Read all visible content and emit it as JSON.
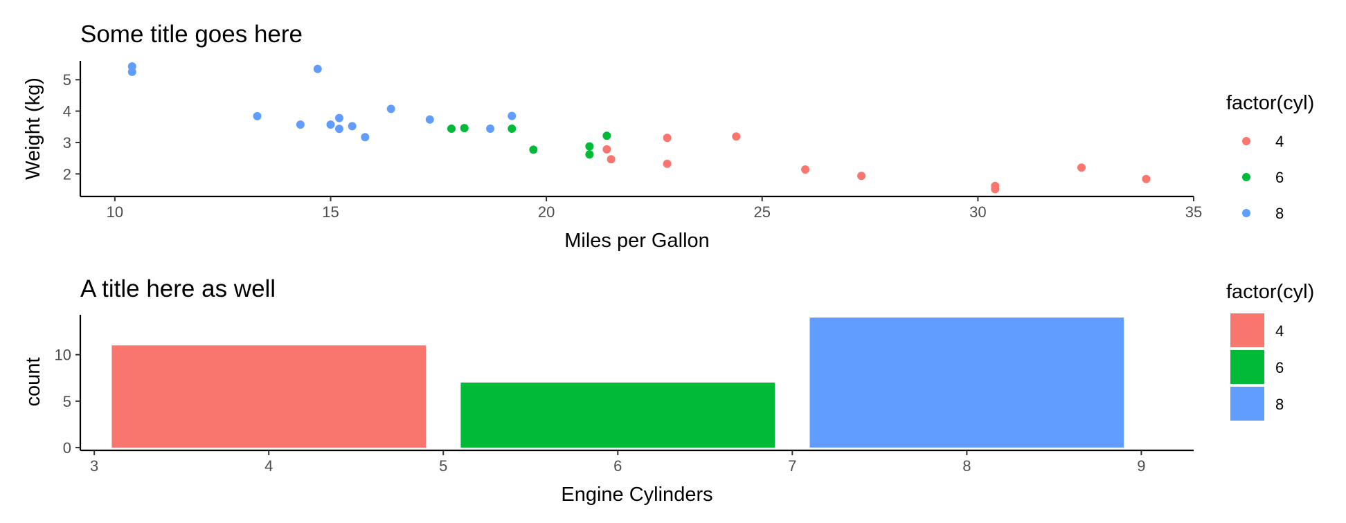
{
  "colors": {
    "4": "#F8766D",
    "6": "#00BA38",
    "8": "#619CFF"
  },
  "chart_data": [
    {
      "type": "scatter",
      "title": "Some title goes here",
      "xlabel": "Miles per Gallon",
      "ylabel": "Weight (kg)",
      "xlim": [
        9.2,
        35.0
      ],
      "ylim": [
        1.28,
        5.6
      ],
      "x_ticks": [
        10,
        15,
        20,
        25,
        30,
        35
      ],
      "y_ticks": [
        2,
        3,
        4,
        5
      ],
      "grid": false,
      "legend": {
        "title": "factor(cyl)",
        "position": "right",
        "entries": [
          "4",
          "6",
          "8"
        ]
      },
      "series": [
        {
          "name": "4",
          "points": [
            [
              22.8,
              2.32
            ],
            [
              24.4,
              3.19
            ],
            [
              22.8,
              3.15
            ],
            [
              32.4,
              2.2
            ],
            [
              30.4,
              1.615
            ],
            [
              33.9,
              1.835
            ],
            [
              21.5,
              2.465
            ],
            [
              27.3,
              1.935
            ],
            [
              26.0,
              2.14
            ],
            [
              30.4,
              1.513
            ],
            [
              21.4,
              2.78
            ]
          ]
        },
        {
          "name": "6",
          "points": [
            [
              21.0,
              2.62
            ],
            [
              21.0,
              2.875
            ],
            [
              21.4,
              3.215
            ],
            [
              18.1,
              3.46
            ],
            [
              19.2,
              3.44
            ],
            [
              17.8,
              3.44
            ],
            [
              19.7,
              2.77
            ]
          ]
        },
        {
          "name": "8",
          "points": [
            [
              18.7,
              3.44
            ],
            [
              14.3,
              3.57
            ],
            [
              16.4,
              4.07
            ],
            [
              17.3,
              3.73
            ],
            [
              15.2,
              3.78
            ],
            [
              10.4,
              5.25
            ],
            [
              10.4,
              5.424
            ],
            [
              14.7,
              5.345
            ],
            [
              15.5,
              3.52
            ],
            [
              15.2,
              3.435
            ],
            [
              13.3,
              3.84
            ],
            [
              19.2,
              3.845
            ],
            [
              15.8,
              3.17
            ],
            [
              15.0,
              3.57
            ]
          ]
        }
      ]
    },
    {
      "type": "bar",
      "title": "A title here as well",
      "xlabel": "Engine Cylinders",
      "ylabel": "count",
      "xlim": [
        2.92,
        9.3
      ],
      "ylim": [
        -0.3,
        14.3
      ],
      "x_ticks": [
        3,
        4,
        5,
        6,
        7,
        8,
        9
      ],
      "y_ticks": [
        0,
        5,
        10
      ],
      "grid": false,
      "legend": {
        "title": "factor(cyl)",
        "position": "right",
        "entries": [
          "4",
          "6",
          "8"
        ]
      },
      "categories": [
        "4",
        "6",
        "8"
      ],
      "x": [
        4,
        6,
        8
      ],
      "values": [
        11,
        7,
        14
      ],
      "bar_width": 1.8
    }
  ]
}
